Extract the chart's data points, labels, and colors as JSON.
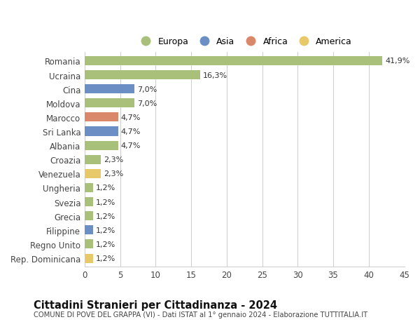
{
  "countries": [
    "Romania",
    "Ucraina",
    "Cina",
    "Moldova",
    "Marocco",
    "Sri Lanka",
    "Albania",
    "Croazia",
    "Venezuela",
    "Ungheria",
    "Svezia",
    "Grecia",
    "Filippine",
    "Regno Unito",
    "Rep. Dominicana"
  ],
  "values": [
    41.9,
    16.3,
    7.0,
    7.0,
    4.7,
    4.7,
    4.7,
    2.3,
    2.3,
    1.2,
    1.2,
    1.2,
    1.2,
    1.2,
    1.2
  ],
  "labels": [
    "41,9%",
    "16,3%",
    "7,0%",
    "7,0%",
    "4,7%",
    "4,7%",
    "4,7%",
    "2,3%",
    "2,3%",
    "1,2%",
    "1,2%",
    "1,2%",
    "1,2%",
    "1,2%",
    "1,2%"
  ],
  "colors": [
    "#a8c07a",
    "#a8c07a",
    "#6b8fc4",
    "#a8c07a",
    "#d9896a",
    "#6b8fc4",
    "#a8c07a",
    "#a8c07a",
    "#e8c96a",
    "#a8c07a",
    "#a8c07a",
    "#a8c07a",
    "#6b8fc4",
    "#a8c07a",
    "#e8c96a"
  ],
  "legend_labels": [
    "Europa",
    "Asia",
    "Africa",
    "America"
  ],
  "legend_colors": [
    "#a8c07a",
    "#6b8fc4",
    "#d9896a",
    "#e8c96a"
  ],
  "xlim": [
    0,
    45
  ],
  "xticks": [
    0,
    5,
    10,
    15,
    20,
    25,
    30,
    35,
    40,
    45
  ],
  "title": "Cittadini Stranieri per Cittadinanza - 2024",
  "subtitle": "COMUNE DI POVE DEL GRAPPA (VI) - Dati ISTAT al 1° gennaio 2024 - Elaborazione TUTTITALIA.IT",
  "bg_color": "#ffffff",
  "grid_color": "#cccccc",
  "bar_label_fontsize": 8.0,
  "ylabel_fontsize": 8.5,
  "xlabel_fontsize": 8.5,
  "title_fontsize": 10.5,
  "subtitle_fontsize": 7.2,
  "legend_fontsize": 9.0
}
